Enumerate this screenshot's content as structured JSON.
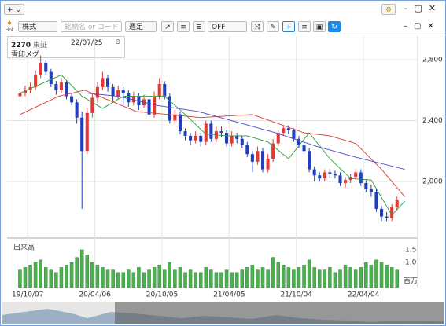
{
  "window": {
    "add_button": "+",
    "menu_button": "⌄"
  },
  "toolbar": {
    "market": "株式",
    "search_placeholder": "銘柄名 or コード",
    "period": "週足",
    "overlay": "OFF",
    "hot_label": "Hot"
  },
  "info": {
    "code": "2270",
    "exchange": "東証",
    "date": "22/07/25",
    "name": "雪印メグ"
  },
  "chart_data": {
    "type": "candlestick",
    "x": [
      0,
      2,
      4,
      6,
      8,
      10,
      12,
      14,
      16,
      18,
      20,
      22,
      24,
      26,
      28,
      30,
      32,
      34,
      36,
      38,
      40,
      42,
      44,
      46,
      48,
      50,
      52,
      54,
      56,
      58,
      60,
      62,
      64,
      66,
      68,
      70,
      72,
      74,
      76,
      78,
      80,
      82,
      84,
      86,
      88,
      90,
      92,
      94,
      96,
      98,
      100,
      102,
      104,
      106,
      108,
      110,
      112,
      114,
      116,
      118,
      120,
      122,
      124,
      126,
      128,
      130,
      132,
      134,
      136,
      138,
      140,
      142,
      144,
      146
    ],
    "open": [
      2560,
      2580,
      2600,
      2620,
      2700,
      2780,
      2720,
      2640,
      2600,
      2650,
      2560,
      2520,
      2420,
      2200,
      2450,
      2550,
      2620,
      2680,
      2620,
      2560,
      2600,
      2580,
      2520,
      2560,
      2500,
      2540,
      2440,
      2560,
      2640,
      2560,
      2400,
      2440,
      2330,
      2300,
      2270,
      2300,
      2260,
      2380,
      2280,
      2330,
      2320,
      2250,
      2300,
      2280,
      2240,
      2180,
      2130,
      2200,
      2080,
      2150,
      2250,
      2320,
      2350,
      2340,
      2280,
      2240,
      2200,
      2080,
      2040,
      2020,
      2060,
      2050,
      2040,
      1990,
      2010,
      2030,
      2060,
      1990,
      1950,
      1930,
      1820,
      1770,
      1760,
      1830
    ],
    "high": [
      2610,
      2630,
      2650,
      2730,
      2830,
      2800,
      2740,
      2660,
      2680,
      2660,
      2580,
      2540,
      2460,
      2480,
      2580,
      2650,
      2720,
      2700,
      2640,
      2630,
      2620,
      2600,
      2590,
      2580,
      2570,
      2560,
      2590,
      2680,
      2660,
      2580,
      2470,
      2460,
      2350,
      2320,
      2330,
      2320,
      2400,
      2400,
      2360,
      2360,
      2340,
      2330,
      2320,
      2300,
      2260,
      2200,
      2230,
      2220,
      2180,
      2280,
      2340,
      2370,
      2370,
      2350,
      2300,
      2260,
      2220,
      2100,
      2060,
      2080,
      2080,
      2070,
      2060,
      2030,
      2050,
      2080,
      2080,
      2010,
      1980,
      1950,
      1840,
      1800,
      1850,
      1900
    ],
    "low": [
      2530,
      2560,
      2580,
      2600,
      2680,
      2700,
      2620,
      2570,
      2580,
      2540,
      2500,
      2380,
      1820,
      2180,
      2420,
      2520,
      2600,
      2590,
      2530,
      2540,
      2500,
      2490,
      2500,
      2470,
      2480,
      2420,
      2420,
      2540,
      2540,
      2380,
      2380,
      2310,
      2270,
      2240,
      2250,
      2230,
      2240,
      2260,
      2260,
      2290,
      2230,
      2230,
      2250,
      2220,
      2160,
      2060,
      2110,
      2060,
      2060,
      2130,
      2230,
      2300,
      2310,
      2260,
      2220,
      2180,
      2060,
      2000,
      2000,
      2000,
      2020,
      2020,
      1970,
      1960,
      1990,
      2010,
      1970,
      1930,
      1900,
      1800,
      1740,
      1740,
      1740,
      1810
    ],
    "close": [
      2580,
      2600,
      2620,
      2700,
      2780,
      2720,
      2640,
      2600,
      2650,
      2560,
      2520,
      2420,
      2200,
      2450,
      2550,
      2620,
      2680,
      2620,
      2560,
      2600,
      2580,
      2520,
      2560,
      2500,
      2540,
      2440,
      2560,
      2640,
      2560,
      2400,
      2440,
      2330,
      2300,
      2270,
      2300,
      2260,
      2380,
      2280,
      2330,
      2320,
      2250,
      2300,
      2280,
      2240,
      2180,
      2130,
      2200,
      2080,
      2150,
      2250,
      2320,
      2350,
      2340,
      2280,
      2240,
      2200,
      2080,
      2040,
      2020,
      2060,
      2050,
      2040,
      1990,
      2010,
      2030,
      2060,
      1990,
      1950,
      1930,
      1820,
      1770,
      1760,
      1830,
      1880
    ],
    "up_color": "#e53935",
    "down_color": "#1f3fbf",
    "lines": [
      {
        "color": "#2e9d3a",
        "x": [
          0,
          8,
          16,
          24,
          32,
          40,
          48,
          56,
          64,
          72,
          80,
          88,
          96,
          104,
          112,
          120,
          128,
          136,
          144,
          149
        ],
        "values": [
          2580,
          2640,
          2700,
          2560,
          2480,
          2560,
          2560,
          2560,
          2440,
          2310,
          2300,
          2300,
          2260,
          2150,
          2320,
          2150,
          2020,
          2010,
          1780,
          1870
        ]
      },
      {
        "color": "#d93a2b",
        "x": [
          0,
          15,
          25,
          45,
          70,
          90,
          110,
          120,
          130,
          140,
          149
        ],
        "values": [
          2440,
          2560,
          2600,
          2460,
          2420,
          2440,
          2320,
          2300,
          2250,
          2080,
          1900
        ]
      },
      {
        "color": "#4a4ad0",
        "x": [
          26,
          38,
          53,
          69,
          84,
          99,
          115,
          130,
          149
        ],
        "values": [
          2580,
          2560,
          2500,
          2460,
          2390,
          2320,
          2230,
          2160,
          2080
        ]
      }
    ],
    "xlim": [
      -5,
      154
    ],
    "ylim": [
      1639,
      2955
    ],
    "xticks": [
      {
        "value": 3,
        "label": "19/10/07"
      },
      {
        "value": 29,
        "label": "20/04/06"
      },
      {
        "value": 55,
        "label": "20/10/05"
      },
      {
        "value": 81,
        "label": "21/04/05"
      },
      {
        "value": 107,
        "label": "21/10/04"
      },
      {
        "value": 133,
        "label": "22/04/04"
      }
    ],
    "yticks": [
      {
        "value": 2000,
        "label": "2,000"
      },
      {
        "value": 2400,
        "label": "2,400"
      },
      {
        "value": 2800,
        "label": "2,800"
      }
    ],
    "grid": true,
    "volume": {
      "label": "出来高",
      "unit": "百万",
      "color": "#4caf50",
      "values": [
        0.7,
        0.8,
        0.9,
        1.0,
        1.1,
        0.8,
        0.7,
        0.6,
        0.8,
        0.9,
        1.0,
        1.2,
        1.5,
        1.3,
        1.0,
        0.9,
        0.8,
        0.7,
        0.7,
        0.6,
        0.6,
        0.7,
        0.6,
        0.8,
        0.6,
        0.7,
        0.8,
        0.9,
        0.7,
        1.0,
        0.7,
        0.8,
        0.6,
        0.7,
        0.6,
        0.6,
        0.8,
        0.7,
        0.6,
        0.6,
        0.7,
        0.6,
        0.6,
        0.7,
        0.8,
        0.9,
        0.7,
        0.8,
        0.7,
        1.2,
        1.0,
        0.9,
        0.8,
        0.7,
        0.8,
        0.9,
        1.1,
        0.8,
        0.7,
        0.7,
        0.8,
        0.6,
        0.7,
        0.9,
        0.8,
        0.7,
        0.8,
        1.0,
        0.9,
        1.1,
        1.0,
        0.9,
        0.8,
        0.7
      ],
      "ylim": [
        0,
        1.875
      ],
      "yticks": [
        {
          "value": 1.0,
          "label": "1.0"
        },
        {
          "value": 1.5,
          "label": "1.5"
        }
      ]
    }
  }
}
